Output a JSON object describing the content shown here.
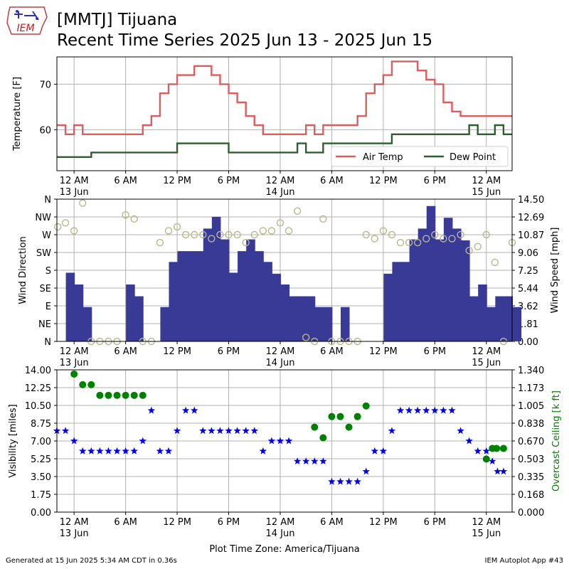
{
  "header": {
    "title_line1": "[MMTJ] Tijuana",
    "title_line2": "Recent Time Series 2025 Jun 13 - 2025 Jun 15",
    "logo_text": "IEM"
  },
  "footer": {
    "generated": "Generated at 15 Jun 2025 5:34 AM CDT in 0.36s",
    "app": "IEM Autoplot App #43"
  },
  "colors": {
    "air_temp": "#d95f5f",
    "dew_point": "#2e5e2e",
    "wind_speed_bar": "#393996",
    "wind_dir_marker": "#b8b88a",
    "visibility": "#0000ee",
    "ceiling": "#008000",
    "grid": "#b0b0b0"
  },
  "chart_data": [
    {
      "type": "line",
      "ylabel": "Temperature [F]",
      "ylim": [
        51,
        76
      ],
      "yticks": [
        60,
        70
      ],
      "xlim_hours": [
        -2,
        51
      ],
      "x_tick_hours": [
        0,
        6,
        12,
        18,
        24,
        30,
        36,
        42,
        48
      ],
      "x_tick_labels": [
        "12 AM\n13 Jun",
        "6 AM",
        "12 PM",
        "6 PM",
        "12 AM\n14 Jun",
        "6 AM",
        "12 PM",
        "6 PM",
        "12 AM\n15 Jun"
      ],
      "legend": "lower-right",
      "series": [
        {
          "name": "Air Temp",
          "x": [
            -2,
            -1,
            0,
            1,
            2,
            3,
            4,
            5,
            6,
            7,
            8,
            9,
            10,
            11,
            12,
            13,
            14,
            15,
            16,
            17,
            18,
            19,
            20,
            21,
            22,
            23,
            24,
            25,
            26,
            27,
            28,
            29,
            30,
            31,
            32,
            33,
            34,
            35,
            36,
            37,
            38,
            39,
            40,
            41,
            42,
            43,
            44,
            45,
            46,
            47,
            48,
            49,
            50,
            51
          ],
          "y": [
            61,
            59,
            61,
            59,
            59,
            59,
            59,
            59,
            59,
            59,
            61,
            63,
            68,
            70,
            72,
            72,
            74,
            74,
            72,
            70,
            68,
            66,
            63,
            61,
            59,
            59,
            59,
            59,
            59,
            61,
            59,
            61,
            61,
            61,
            61,
            63,
            68,
            70,
            72,
            75,
            75,
            75,
            73,
            71,
            70,
            66,
            64,
            63,
            63,
            63,
            63,
            63,
            63,
            63
          ]
        },
        {
          "name": "Dew Point",
          "x": [
            -2,
            -1,
            0,
            1,
            2,
            3,
            4,
            5,
            6,
            7,
            8,
            9,
            10,
            11,
            12,
            13,
            14,
            15,
            16,
            17,
            18,
            19,
            20,
            21,
            22,
            23,
            24,
            25,
            26,
            27,
            28,
            29,
            30,
            31,
            32,
            33,
            34,
            35,
            36,
            37,
            38,
            39,
            40,
            41,
            42,
            43,
            44,
            45,
            46,
            47,
            48,
            49,
            50,
            51
          ],
          "y": [
            54,
            54,
            54,
            54,
            55,
            55,
            55,
            55,
            55,
            55,
            55,
            55,
            55,
            55,
            57,
            57,
            57,
            57,
            57,
            57,
            55,
            55,
            55,
            55,
            55,
            55,
            55,
            55,
            57,
            55,
            55,
            57,
            57,
            57,
            57,
            57,
            57,
            57,
            57,
            59,
            59,
            59,
            59,
            59,
            59,
            59,
            59,
            59,
            61,
            59,
            59,
            61,
            59,
            59
          ]
        }
      ]
    },
    {
      "type": "bar",
      "ylabel": "Wind Direction",
      "y2label": "Wind Speed [mph]",
      "ylim": [
        0,
        360
      ],
      "yticks_deg": [
        0,
        45,
        90,
        135,
        180,
        225,
        270,
        315,
        360
      ],
      "yticks": [
        "N",
        "NE",
        "E",
        "SE",
        "S",
        "SW",
        "W",
        "NW",
        "N"
      ],
      "y2lim": [
        0,
        14.5
      ],
      "y2ticks": [
        "0.00",
        "1.81",
        "3.62",
        "5.44",
        "7.25",
        "9.06",
        "10.87",
        "12.69",
        "14.50"
      ],
      "xlim_hours": [
        -2,
        51
      ],
      "x_tick_hours": [
        0,
        6,
        12,
        18,
        24,
        30,
        36,
        42,
        48
      ],
      "x_tick_labels": [
        "12 AM\n13 Jun",
        "6 AM",
        "12 PM",
        "6 PM",
        "12 AM\n14 Jun",
        "6 AM",
        "12 PM",
        "6 PM",
        "12 AM\n15 Jun"
      ],
      "series": [
        {
          "name": "Wind Speed",
          "x": [
            -2,
            -1,
            0,
            1,
            2,
            3,
            4,
            5,
            6,
            7,
            8,
            9,
            10,
            11,
            12,
            13,
            14,
            15,
            16,
            17,
            18,
            19,
            20,
            21,
            22,
            23,
            24,
            25,
            26,
            27,
            28,
            29,
            30,
            31,
            32,
            33,
            34,
            35,
            36,
            37,
            38,
            39,
            40,
            41,
            42,
            43,
            44,
            45,
            46,
            47,
            48,
            49,
            50,
            51
          ],
          "values": [
            0,
            7,
            5.8,
            3.5,
            0,
            0,
            0,
            0,
            5.8,
            4.6,
            0,
            0,
            3.5,
            8.1,
            9.2,
            9.2,
            9.2,
            11.5,
            12.7,
            10.4,
            7,
            9.2,
            10.4,
            9.2,
            8.1,
            6.9,
            5.8,
            4.6,
            4.6,
            4.6,
            3.5,
            3.5,
            0,
            3.5,
            0,
            0,
            0,
            0,
            6.9,
            8.1,
            8.1,
            10.4,
            11.5,
            13.8,
            10.4,
            12.6,
            11.5,
            10.3,
            4.6,
            5.8,
            3.5,
            4.6,
            4.6,
            3.5
          ]
        },
        {
          "name": "Wind Direction",
          "type": "scatter",
          "x": [
            -1.9,
            -1,
            0,
            1,
            2,
            3,
            4,
            5,
            6,
            7,
            8,
            9,
            10,
            11,
            12,
            13,
            14,
            15,
            16,
            17,
            18,
            19,
            20,
            21,
            22,
            23,
            24,
            25,
            26,
            27,
            28,
            29,
            30,
            31,
            32,
            33,
            34,
            35,
            36,
            37,
            38,
            39,
            40,
            41,
            42,
            43,
            44,
            45,
            46,
            47,
            48,
            49,
            50,
            51
          ],
          "y": [
            290,
            300,
            280,
            350,
            0,
            0,
            0,
            0,
            320,
            310,
            0,
            0,
            250,
            280,
            290,
            270,
            270,
            270,
            260,
            270,
            270,
            270,
            250,
            270,
            280,
            280,
            300,
            280,
            330,
            10,
            0,
            310,
            0,
            0,
            0,
            0,
            270,
            260,
            280,
            270,
            250,
            250,
            250,
            260,
            270,
            260,
            260,
            270,
            230,
            240,
            270,
            200,
            0,
            250
          ]
        }
      ]
    },
    {
      "type": "scatter",
      "ylabel": "Visibility [miles]",
      "y2label": "Overcast Ceiling [k ft]",
      "ylim": [
        0,
        14
      ],
      "yticks": [
        "0.00",
        "1.75",
        "3.50",
        "5.25",
        "7.00",
        "8.75",
        "10.50",
        "12.25",
        "14.00"
      ],
      "y2lim": [
        0,
        1.34
      ],
      "y2ticks": [
        "0.000",
        "0.168",
        "0.335",
        "0.503",
        "0.670",
        "0.838",
        "1.005",
        "1.173",
        "1.340"
      ],
      "xlim_hours": [
        -2,
        51
      ],
      "x_tick_hours": [
        0,
        6,
        12,
        18,
        24,
        30,
        36,
        42,
        48
      ],
      "x_tick_labels": [
        "12 AM\n13 Jun",
        "6 AM",
        "12 PM",
        "6 PM",
        "12 AM\n14 Jun",
        "6 AM",
        "12 PM",
        "6 PM",
        "12 AM\n15 Jun"
      ],
      "xlabel": "Plot Time Zone: America/Tijuana",
      "series": [
        {
          "name": "Visibility",
          "x": [
            -2,
            -1,
            0,
            1,
            2,
            3,
            4,
            5,
            6,
            7,
            8,
            9,
            10,
            11,
            12,
            13,
            14,
            15,
            16,
            17,
            18,
            19,
            20,
            21,
            22,
            23,
            24,
            25,
            26,
            27,
            28,
            29,
            30,
            31,
            32,
            33,
            34,
            35,
            36,
            37,
            38,
            39,
            40,
            41,
            42,
            43,
            44,
            45,
            46,
            47,
            48,
            48.7,
            49.3,
            50
          ],
          "y": [
            8,
            8,
            7,
            6,
            6,
            6,
            6,
            6,
            6,
            6,
            7,
            10,
            6,
            6,
            8,
            10,
            10,
            8,
            8,
            8,
            8,
            8,
            8,
            8,
            6,
            7,
            7,
            7,
            5,
            5,
            5,
            5,
            3,
            3,
            3,
            3,
            4,
            6,
            6,
            8,
            10,
            10,
            10,
            10,
            10,
            10,
            10,
            8,
            7,
            6,
            6,
            5,
            4,
            4
          ]
        },
        {
          "name": "Overcast Ceiling",
          "x": [
            0,
            1,
            2,
            3,
            4,
            5,
            6,
            7,
            8,
            28,
            29,
            30,
            31,
            32,
            33,
            34,
            48,
            48.7,
            49.2,
            50
          ],
          "y": [
            1.3,
            1.2,
            1.2,
            1.1,
            1.1,
            1.1,
            1.1,
            1.1,
            1.1,
            0.8,
            0.7,
            0.9,
            0.9,
            0.8,
            0.9,
            1.0,
            0.5,
            0.6,
            0.6,
            0.6
          ]
        }
      ]
    }
  ]
}
